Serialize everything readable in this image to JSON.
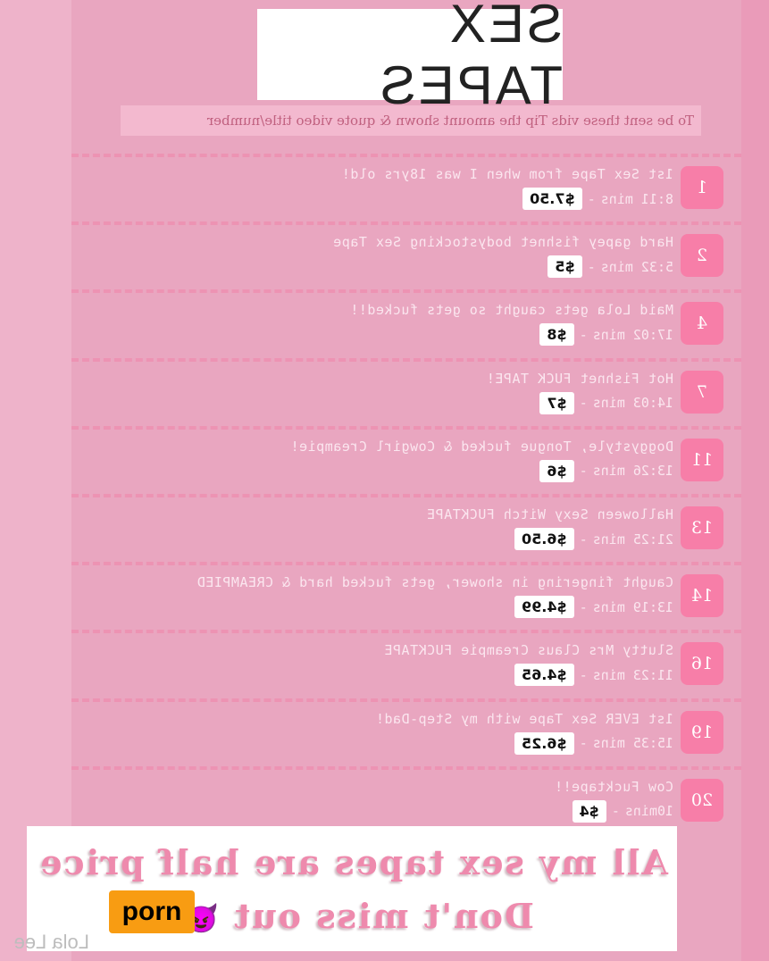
{
  "title": "SEX TAPES",
  "subtitle": "To be sent these vids Tip the amount shown & quote video title/number",
  "colors": {
    "background": "#eeb3ca",
    "panel": "#e9a6c0",
    "number_badge": "#f77ea8",
    "accent_text": "#ee8aad",
    "porn_badge": "#f89c12"
  },
  "videos": [
    {
      "number": "1",
      "title": "1st Sex Tape from when I was 18yrs old!",
      "duration": "8:11 mins",
      "price": "$7.50"
    },
    {
      "number": "2",
      "title": "Hard gapey fishnet bodystocking Sex Tape",
      "duration": "5:32 mins",
      "price": "$5"
    },
    {
      "number": "4",
      "title": "Maid Lola gets caught so gets fucked!!",
      "duration": "17:02 mins",
      "price": "$8"
    },
    {
      "number": "7",
      "title": "Hot Fishnet FUCK TAPE!",
      "duration": "14:03 mins",
      "price": "$7"
    },
    {
      "number": "11",
      "title": "Doggystyle, Tongue fucked & Cowgirl Creampie!",
      "duration": "13:26 mins",
      "price": "$6"
    },
    {
      "number": "13",
      "title": "Halloween Sexy Witch FUCKTAPE",
      "duration": "21:25 mins",
      "price": "$6.50"
    },
    {
      "number": "14",
      "title": "Caught fingering in shower, gets fucked hard & CREAMPIED",
      "duration": "13:19 mins",
      "price": "$4.99"
    },
    {
      "number": "16",
      "title": "Slutty Mrs Claus Creampie FUCKTAPE",
      "duration": "11:23 mins",
      "price": "$4.65"
    },
    {
      "number": "19",
      "title": "1st EVER Sex Tape with my Step-Dad!",
      "duration": "15:35 mins",
      "price": "$6.25"
    },
    {
      "number": "20",
      "title": "Cow Fucktape!!",
      "duration": "10mins",
      "price": "$4"
    }
  ],
  "promo": {
    "line1": "All my sex tapes are half price",
    "line2": "Don't miss out",
    "emoji": "😈"
  },
  "signature": "Lola Lee",
  "watermark": "porn"
}
